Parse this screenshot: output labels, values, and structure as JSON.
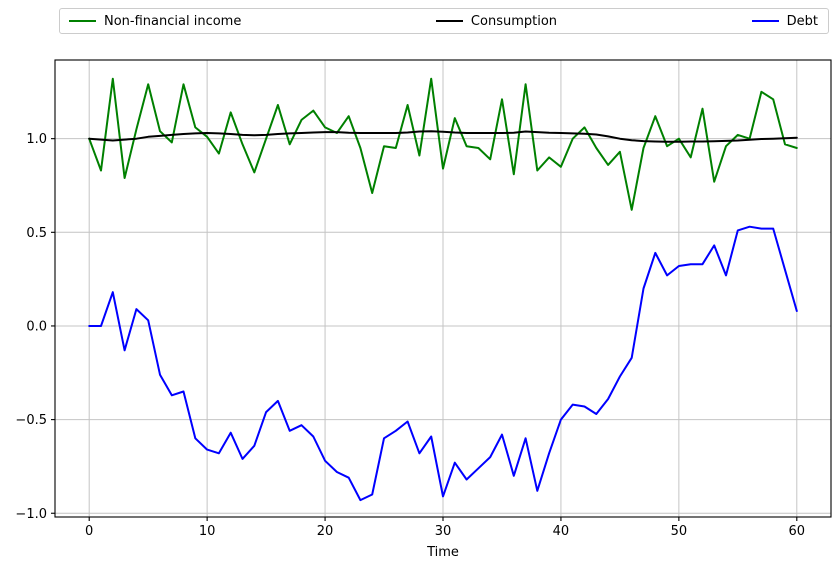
{
  "chart_data": {
    "type": "line",
    "title": "",
    "xlabel": "Time",
    "ylabel": "",
    "grid": true,
    "legend_position": "top-outside-horizontal",
    "grid_color": "#c4c4c4",
    "axis_color": "#000000",
    "background_color": "#ffffff",
    "xlim": [
      -2.9,
      62.9
    ],
    "ylim": [
      -1.02,
      1.42
    ],
    "xticks": [
      0,
      10,
      20,
      30,
      40,
      50,
      60
    ],
    "xtick_labels": [
      "0",
      "10",
      "20",
      "30",
      "40",
      "50",
      "60"
    ],
    "yticks": [
      1.0,
      0.5,
      0.0,
      -0.5,
      -1.0
    ],
    "ytick_labels": [
      "1.0",
      "0.5",
      "0.0",
      "−0.5",
      "−1.0"
    ],
    "x": [
      0,
      1,
      2,
      3,
      4,
      5,
      6,
      7,
      8,
      9,
      10,
      11,
      12,
      13,
      14,
      15,
      16,
      17,
      18,
      19,
      20,
      21,
      22,
      23,
      24,
      25,
      26,
      27,
      28,
      29,
      30,
      31,
      32,
      33,
      34,
      35,
      36,
      37,
      38,
      39,
      40,
      41,
      42,
      43,
      44,
      45,
      46,
      47,
      48,
      49,
      50,
      51,
      52,
      53,
      54,
      55,
      56,
      57,
      58,
      59,
      60
    ],
    "series": [
      {
        "name": "Non-financial income",
        "color": "#008000",
        "values": [
          1.0,
          0.83,
          1.32,
          0.79,
          1.05,
          1.29,
          1.04,
          0.98,
          1.29,
          1.06,
          1.01,
          0.92,
          1.14,
          0.97,
          0.82,
          1.0,
          1.18,
          0.97,
          1.1,
          1.15,
          1.06,
          1.03,
          1.12,
          0.95,
          0.71,
          0.96,
          0.95,
          1.18,
          0.91,
          1.32,
          0.84,
          1.11,
          0.96,
          0.95,
          0.89,
          1.21,
          0.81,
          1.29,
          0.83,
          0.9,
          0.85,
          1.0,
          1.06,
          0.95,
          0.86,
          0.93,
          0.62,
          0.95,
          1.12,
          0.96,
          1.0,
          0.9,
          1.16,
          0.77,
          0.96,
          1.02,
          1.0,
          1.25,
          1.21,
          0.97,
          0.95
        ]
      },
      {
        "name": "Consumption",
        "color": "#000000",
        "values": [
          1.0,
          0.995,
          0.99,
          0.995,
          1.0,
          1.01,
          1.015,
          1.02,
          1.025,
          1.028,
          1.03,
          1.028,
          1.025,
          1.02,
          1.018,
          1.02,
          1.025,
          1.028,
          1.03,
          1.033,
          1.035,
          1.035,
          1.032,
          1.03,
          1.03,
          1.03,
          1.03,
          1.033,
          1.038,
          1.04,
          1.037,
          1.033,
          1.03,
          1.03,
          1.03,
          1.03,
          1.032,
          1.038,
          1.035,
          1.032,
          1.03,
          1.028,
          1.026,
          1.022,
          1.012,
          1.0,
          0.992,
          0.987,
          0.985,
          0.984,
          0.984,
          0.985,
          0.985,
          0.986,
          0.988,
          0.99,
          0.994,
          0.998,
          1.0,
          1.002,
          1.005
        ]
      },
      {
        "name": "Debt",
        "color": "#0000ff",
        "values": [
          0.0,
          0.0,
          0.18,
          -0.13,
          0.09,
          0.03,
          -0.26,
          -0.37,
          -0.35,
          -0.6,
          -0.66,
          -0.68,
          -0.57,
          -0.71,
          -0.64,
          -0.46,
          -0.4,
          -0.56,
          -0.53,
          -0.59,
          -0.72,
          -0.78,
          -0.81,
          -0.93,
          -0.9,
          -0.6,
          -0.56,
          -0.51,
          -0.68,
          -0.59,
          -0.91,
          -0.73,
          -0.82,
          -0.76,
          -0.7,
          -0.58,
          -0.8,
          -0.6,
          -0.88,
          -0.68,
          -0.5,
          -0.42,
          -0.43,
          -0.47,
          -0.39,
          -0.27,
          -0.17,
          0.2,
          0.39,
          0.27,
          0.32,
          0.33,
          0.33,
          0.43,
          0.27,
          0.51,
          0.53,
          0.52,
          0.52,
          0.3,
          0.08
        ]
      }
    ]
  }
}
